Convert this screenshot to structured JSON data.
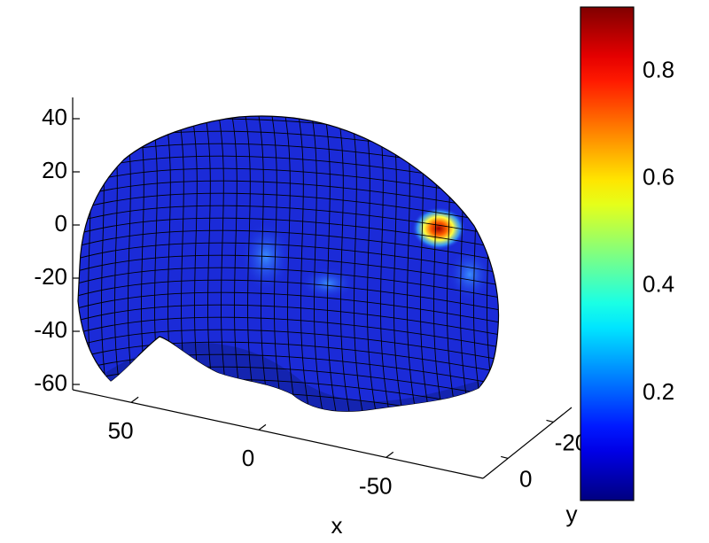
{
  "chart_data": {
    "type": "surface",
    "xlabel": "x",
    "ylabel": "y",
    "xlim": [
      73,
      -88
    ],
    "xticks": [
      50,
      0,
      -50
    ],
    "ylim": [
      11,
      -28
    ],
    "yticks": [
      0,
      -20
    ],
    "zlim": [
      -62,
      48
    ],
    "zticks": [
      40,
      20,
      0,
      -20,
      -40,
      -60
    ],
    "colorbar": {
      "clim": [
        0,
        0.92
      ],
      "ticks": [
        0.2,
        0.4,
        0.6,
        0.8
      ],
      "colormap": "jet"
    }
  }
}
